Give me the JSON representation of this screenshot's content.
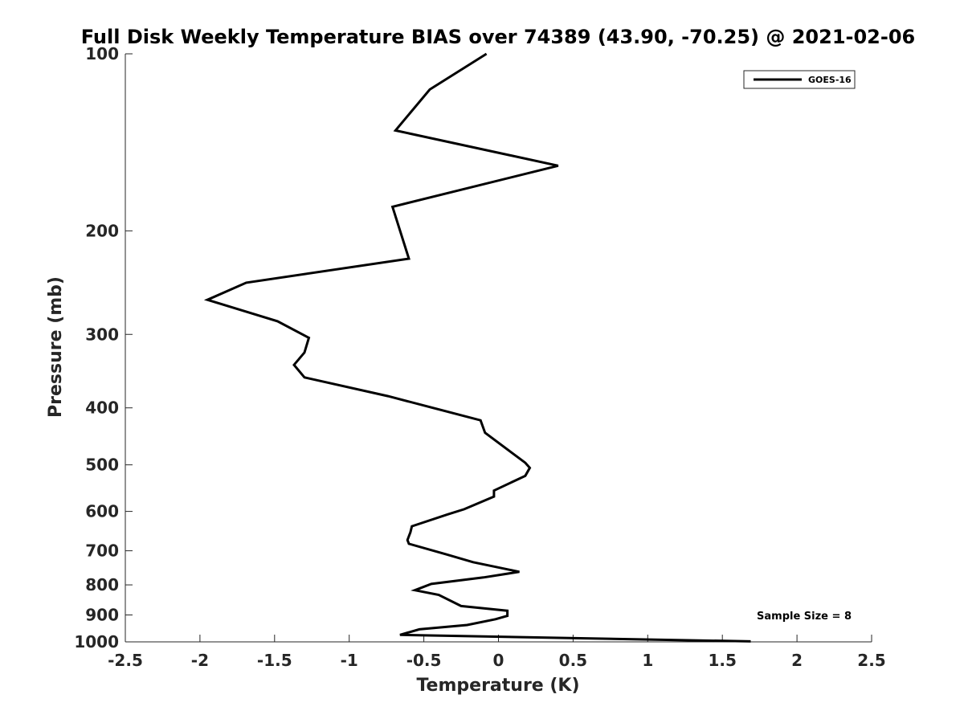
{
  "chart_data": {
    "type": "line",
    "title": "Full Disk Weekly Temperature BIAS over 74389 (43.90, -70.25) @ 2021-02-06",
    "xlabel": "Temperature (K)",
    "ylabel": "Pressure (mb)",
    "xlim": [
      -2.5,
      2.5
    ],
    "ylim": [
      100,
      1000
    ],
    "y_scale": "log",
    "y_reversed": true,
    "x_ticks": [
      "-2.5",
      "-2",
      "-1.5",
      "-1",
      "-0.5",
      "0",
      "0.5",
      "1",
      "1.5",
      "2",
      "2.5"
    ],
    "x_tick_values": [
      -2.5,
      -2,
      -1.5,
      -1,
      -0.5,
      0,
      0.5,
      1,
      1.5,
      2,
      2.5
    ],
    "y_ticks": [
      "100",
      "200",
      "300",
      "400",
      "500",
      "600",
      "700",
      "800",
      "900",
      "1000"
    ],
    "y_tick_values": [
      100,
      200,
      300,
      400,
      500,
      600,
      700,
      800,
      900,
      1000
    ],
    "grid": false,
    "legend": {
      "position": "top-right",
      "entries": [
        "GOES-16"
      ]
    },
    "annotation": "Sample Size = 8",
    "series": [
      {
        "name": "GOES-16",
        "color": "#000000",
        "points": [
          [
            -0.08,
            100
          ],
          [
            -0.46,
            115
          ],
          [
            -0.69,
            135
          ],
          [
            0.4,
            155
          ],
          [
            -0.71,
            182
          ],
          [
            -0.6,
            223
          ],
          [
            -1.69,
            245
          ],
          [
            -1.95,
            262
          ],
          [
            -1.48,
            285
          ],
          [
            -1.27,
            304
          ],
          [
            -1.3,
            322
          ],
          [
            -1.37,
            338
          ],
          [
            -1.3,
            355
          ],
          [
            -0.74,
            382
          ],
          [
            -0.12,
            420
          ],
          [
            -0.09,
            441
          ],
          [
            0.08,
            475
          ],
          [
            0.18,
            496
          ],
          [
            0.21,
            506
          ],
          [
            0.18,
            522
          ],
          [
            -0.03,
            553
          ],
          [
            -0.03,
            566
          ],
          [
            -0.23,
            595
          ],
          [
            -0.34,
            607
          ],
          [
            -0.58,
            636
          ],
          [
            -0.59,
            651
          ],
          [
            -0.61,
            671
          ],
          [
            -0.6,
            681
          ],
          [
            -0.35,
            710
          ],
          [
            -0.17,
            732
          ],
          [
            0.14,
            760
          ],
          [
            -0.1,
            777
          ],
          [
            -0.45,
            797
          ],
          [
            -0.56,
            817
          ],
          [
            -0.4,
            832
          ],
          [
            -0.25,
            869
          ],
          [
            0.06,
            885
          ],
          [
            0.06,
            903
          ],
          [
            -0.02,
            915
          ],
          [
            -0.21,
            936
          ],
          [
            -0.53,
            952
          ],
          [
            -0.66,
            973
          ],
          [
            1.69,
            998
          ]
        ]
      }
    ]
  }
}
